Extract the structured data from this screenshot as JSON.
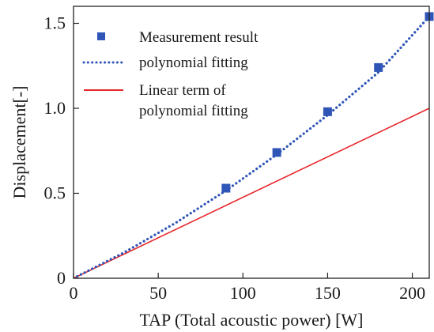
{
  "chart_data": {
    "type": "line",
    "title": "",
    "xlabel": "TAP (Total acoustic power) [W]",
    "ylabel": "Displacement[-]",
    "xlim": [
      0,
      210
    ],
    "ylim": [
      0,
      1.6
    ],
    "x_ticks": [
      0,
      50,
      100,
      150,
      200
    ],
    "y_ticks": [
      0,
      0.5,
      1.0,
      1.5
    ],
    "x_tick_labels": [
      "0",
      "50",
      "100",
      "150",
      "200"
    ],
    "y_tick_labels": [
      "0",
      "0.5",
      "1.0",
      "1.5"
    ],
    "grid": false,
    "legend_position": "top-left",
    "series": [
      {
        "name": "Measurement result",
        "kind": "scatter",
        "marker": "square",
        "color": "#2f55b7",
        "x": [
          0,
          90,
          120,
          150,
          180,
          210
        ],
        "y": [
          0,
          0.53,
          0.74,
          0.98,
          1.24,
          1.54
        ]
      },
      {
        "name": "polynomial fitting",
        "kind": "line",
        "style": "dotted",
        "color": "#2f55b7",
        "x": [
          0,
          30,
          60,
          90,
          120,
          150,
          180,
          210
        ],
        "y": [
          0,
          0.152,
          0.324,
          0.516,
          0.728,
          0.96,
          1.212,
          1.54
        ]
      },
      {
        "name": "Linear term of polynomial fitting",
        "legend_lines": [
          "Linear term of",
          "polynomial fitting"
        ],
        "kind": "line",
        "style": "solid",
        "color": "#e8262a",
        "x": [
          0,
          210
        ],
        "y": [
          0,
          1.0
        ]
      }
    ]
  }
}
